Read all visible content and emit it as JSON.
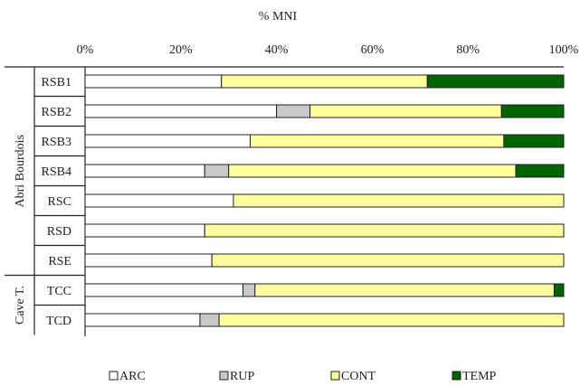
{
  "chart_data": {
    "type": "bar",
    "stacked": true,
    "orientation": "horizontal",
    "axis_title": "% MNI",
    "xlim": [
      0,
      100
    ],
    "x_ticks": [
      "0%",
      "20%",
      "40%",
      "60%",
      "80%",
      "100%"
    ],
    "x_tick_values": [
      0,
      20,
      40,
      60,
      80,
      100
    ],
    "categories": [
      "RSB1",
      "RSB2",
      "RSB3",
      "RSB4",
      "RSC",
      "RSD",
      "RSE",
      "TCC",
      "TCD"
    ],
    "groups": [
      {
        "label": "Abri Bourdois",
        "categories": [
          "RSB1",
          "RSB2",
          "RSB3",
          "RSB4",
          "RSC",
          "RSD",
          "RSE"
        ]
      },
      {
        "label": "Cave T.",
        "categories": [
          "TCC",
          "TCD"
        ]
      }
    ],
    "series": [
      {
        "name": "ARC",
        "color": "#ffffff",
        "values": [
          28.5,
          40,
          34.5,
          25,
          31,
          25,
          26.5,
          33,
          24
        ]
      },
      {
        "name": "RUP",
        "color": "#c8c8c8",
        "values": [
          0,
          7,
          0,
          5,
          0,
          0,
          0,
          2.5,
          4
        ]
      },
      {
        "name": "CONT",
        "color": "#ffff9e",
        "values": [
          43,
          40,
          53,
          60,
          69,
          75,
          73.5,
          62.5,
          72
        ]
      },
      {
        "name": "TEMP",
        "color": "#006400",
        "values": [
          28.5,
          13,
          12.5,
          10,
          0,
          0,
          0,
          2,
          0
        ]
      }
    ],
    "grid": false,
    "legend_position": "bottom"
  }
}
